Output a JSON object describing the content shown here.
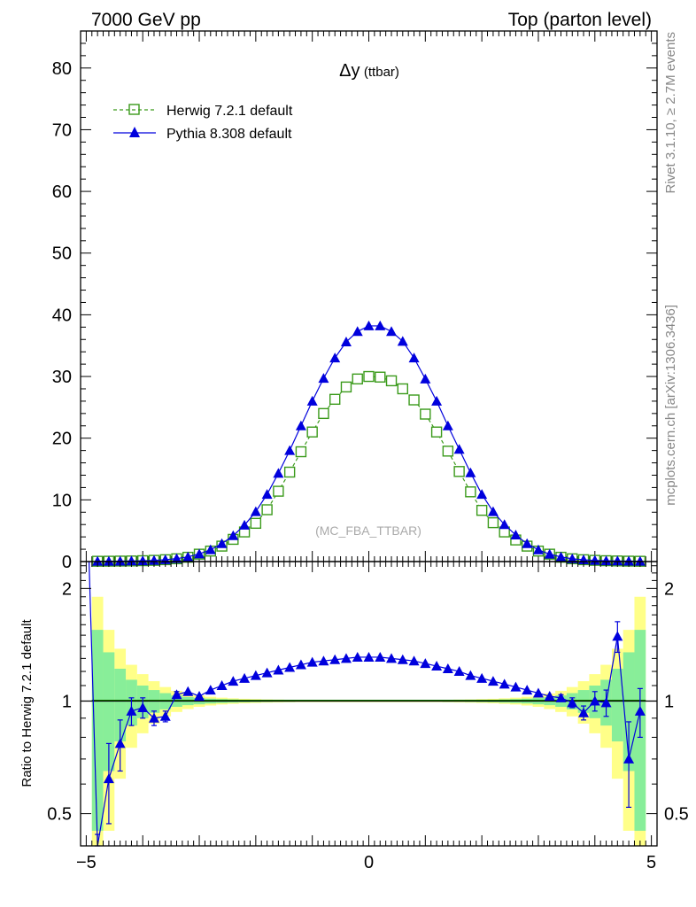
{
  "header": {
    "left_label": "7000 GeV pp",
    "right_label": "Top (parton level)"
  },
  "side_labels": {
    "rivet": "Rivet 3.1.10, ≥ 2.7M events",
    "mcplots": "mcplots.cern.ch [arXiv:1306.3436]"
  },
  "colors": {
    "herwig": "#3a9a1a",
    "pythia": "#0000dd",
    "band_green": "#88ee99",
    "band_yellow": "#ffff88",
    "ref_line": "#117700"
  },
  "chart_data": [
    {
      "type": "line",
      "title_main": "Δy",
      "title_sub": "(ttbar)",
      "watermark": "(MC_FBA_TTBAR)",
      "xlim": [
        -5.1,
        5.1
      ],
      "ylim": [
        0,
        86
      ],
      "legend_position": "top-left",
      "y_ticks": [
        "0",
        "10",
        "20",
        "30",
        "40",
        "50",
        "60",
        "70",
        "80"
      ],
      "x": [
        -4.8,
        -4.6,
        -4.4,
        -4.2,
        -4.0,
        -3.8,
        -3.6,
        -3.4,
        -3.2,
        -3.0,
        -2.8,
        -2.6,
        -2.4,
        -2.2,
        -2.0,
        -1.8,
        -1.6,
        -1.4,
        -1.2,
        -1.0,
        -0.8,
        -0.6,
        -0.4,
        -0.2,
        0.0,
        0.2,
        0.4,
        0.6,
        0.8,
        1.0,
        1.2,
        1.4,
        1.6,
        1.8,
        2.0,
        2.2,
        2.4,
        2.6,
        2.8,
        3.0,
        3.2,
        3.4,
        3.6,
        3.8,
        4.0,
        4.2,
        4.4,
        4.6,
        4.8
      ],
      "series": [
        {
          "name": "Herwig 7.2.1 default",
          "values": [
            0.05,
            0.06,
            0.08,
            0.1,
            0.14,
            0.2,
            0.3,
            0.45,
            0.7,
            1.2,
            1.7,
            2.5,
            3.6,
            4.8,
            6.2,
            8.4,
            11.4,
            14.5,
            17.8,
            21.0,
            24.0,
            26.3,
            28.3,
            29.6,
            30.0,
            29.9,
            29.3,
            28.0,
            26.2,
            23.9,
            21.0,
            17.9,
            14.6,
            11.3,
            8.3,
            6.3,
            4.8,
            3.5,
            2.5,
            1.7,
            1.2,
            0.7,
            0.45,
            0.3,
            0.2,
            0.14,
            0.1,
            0.07,
            0.05
          ]
        },
        {
          "name": "Pythia 8.308 default",
          "values": [
            0.05,
            0.05,
            0.07,
            0.1,
            0.13,
            0.19,
            0.3,
            0.48,
            0.76,
            1.24,
            1.92,
            2.9,
            4.2,
            5.9,
            8.1,
            10.9,
            14.3,
            18.0,
            22.0,
            26.0,
            29.7,
            33.0,
            35.6,
            37.3,
            38.2,
            38.2,
            37.3,
            35.7,
            33.0,
            29.6,
            26.0,
            22.0,
            18.2,
            14.4,
            10.9,
            8.1,
            6.0,
            4.3,
            2.9,
            1.9,
            1.2,
            0.75,
            0.45,
            0.29,
            0.19,
            0.13,
            0.1,
            0.07,
            0.05
          ]
        }
      ]
    },
    {
      "type": "line",
      "ylabel": "Ratio to Herwig 7.2.1 default",
      "ylim": [
        0.41,
        2.36
      ],
      "y_scale": "log",
      "xlim": [
        -5.1,
        5.1
      ],
      "x_ticks": [
        "−5",
        "0",
        "5"
      ],
      "y_ticks": [
        "0.5",
        "1",
        "2"
      ],
      "x": [
        -4.8,
        -4.6,
        -4.4,
        -4.2,
        -4.0,
        -3.8,
        -3.6,
        -3.4,
        -3.2,
        -3.0,
        -2.8,
        -2.6,
        -2.4,
        -2.2,
        -2.0,
        -1.8,
        -1.6,
        -1.4,
        -1.2,
        -1.0,
        -0.8,
        -0.6,
        -0.4,
        -0.2,
        0.0,
        0.2,
        0.4,
        0.6,
        0.8,
        1.0,
        1.2,
        1.4,
        1.6,
        1.8,
        2.0,
        2.2,
        2.4,
        2.6,
        2.8,
        3.0,
        3.2,
        3.4,
        3.6,
        3.8,
        4.0,
        4.2,
        4.4,
        4.6,
        4.8
      ],
      "series": [
        {
          "name": "Pythia 8.308 default",
          "values": [
            0.36,
            0.62,
            0.77,
            0.94,
            0.96,
            0.9,
            0.91,
            1.04,
            1.06,
            1.03,
            1.07,
            1.1,
            1.13,
            1.15,
            1.17,
            1.19,
            1.21,
            1.23,
            1.25,
            1.27,
            1.28,
            1.29,
            1.3,
            1.31,
            1.31,
            1.31,
            1.3,
            1.29,
            1.28,
            1.26,
            1.24,
            1.22,
            1.2,
            1.17,
            1.15,
            1.13,
            1.11,
            1.09,
            1.07,
            1.05,
            1.03,
            1.02,
            0.99,
            0.93,
            1.0,
            0.99,
            1.49,
            0.7,
            0.94
          ],
          "errors": [
            0.08,
            0.15,
            0.12,
            0.08,
            0.06,
            0.04,
            0.03,
            0.02,
            0.015,
            0.01,
            0.01,
            0.01,
            0.01,
            0.01,
            0.01,
            0.01,
            0.01,
            0.01,
            0.01,
            0.01,
            0.01,
            0.01,
            0.01,
            0.01,
            0.01,
            0.01,
            0.01,
            0.01,
            0.01,
            0.01,
            0.01,
            0.01,
            0.01,
            0.01,
            0.01,
            0.01,
            0.01,
            0.01,
            0.01,
            0.01,
            0.015,
            0.02,
            0.03,
            0.04,
            0.06,
            0.08,
            0.14,
            0.18,
            0.14
          ]
        }
      ],
      "band_green_halfwidth": [
        0.55,
        0.35,
        0.22,
        0.14,
        0.1,
        0.07,
        0.05,
        0.035,
        0.025,
        0.02,
        0.015,
        0.012,
        0.01,
        0.008,
        0.007,
        0.006,
        0.005,
        0.005,
        0.004,
        0.004,
        0.004,
        0.004,
        0.004,
        0.004,
        0.004,
        0.004,
        0.004,
        0.004,
        0.004,
        0.004,
        0.004,
        0.005,
        0.005,
        0.006,
        0.007,
        0.008,
        0.01,
        0.012,
        0.015,
        0.02,
        0.025,
        0.035,
        0.05,
        0.07,
        0.1,
        0.14,
        0.22,
        0.35,
        0.55
      ],
      "band_yellow_halfwidth": [
        0.9,
        0.55,
        0.38,
        0.25,
        0.18,
        0.13,
        0.09,
        0.065,
        0.048,
        0.035,
        0.027,
        0.021,
        0.017,
        0.014,
        0.012,
        0.01,
        0.009,
        0.008,
        0.007,
        0.007,
        0.007,
        0.007,
        0.007,
        0.007,
        0.007,
        0.007,
        0.007,
        0.007,
        0.007,
        0.007,
        0.007,
        0.008,
        0.009,
        0.01,
        0.012,
        0.014,
        0.017,
        0.021,
        0.027,
        0.035,
        0.048,
        0.065,
        0.09,
        0.13,
        0.18,
        0.25,
        0.38,
        0.55,
        0.9
      ]
    }
  ]
}
